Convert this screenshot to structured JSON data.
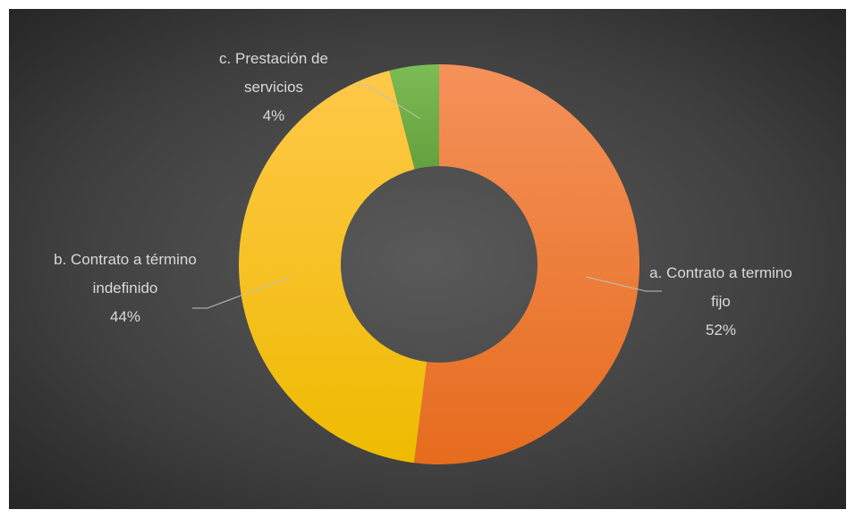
{
  "chart_data": {
    "type": "donut",
    "categories": [
      "a. Contrato a termino fijo",
      "b. Contrato a término indefinido",
      "c. Prestación de servicios"
    ],
    "values": [
      52,
      44,
      4
    ],
    "value_labels": [
      "52%",
      "44%",
      "4%"
    ],
    "colors": [
      "#ED7D31",
      "#FFC000",
      "#70AD47"
    ]
  }
}
